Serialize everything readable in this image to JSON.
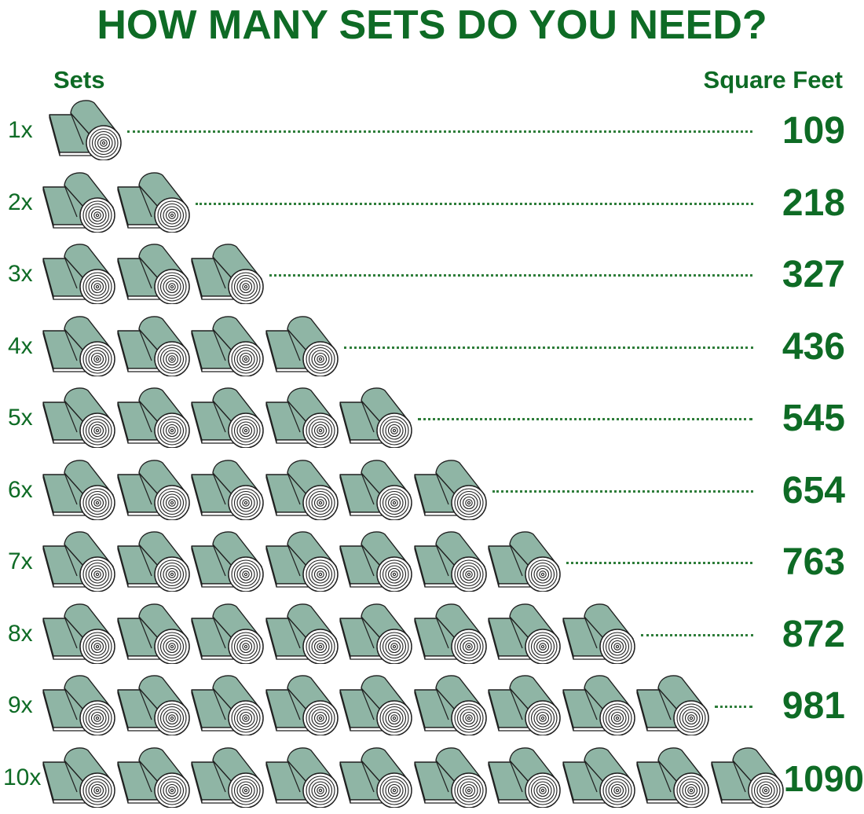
{
  "title": "HOW MANY SETS DO YOU NEED?",
  "headers": {
    "sets": "Sets",
    "square_feet": "Square Feet"
  },
  "icon": "rolled-turf-icon",
  "colors": {
    "text_green": "#0e6b25",
    "dots_green": "#2e7d3a",
    "turf_fill": "#8fb5a5",
    "outline": "#1f1f1f"
  },
  "rows": [
    {
      "label": "1x",
      "sets": 1,
      "square_feet": "109"
    },
    {
      "label": "2x",
      "sets": 2,
      "square_feet": "218"
    },
    {
      "label": "3x",
      "sets": 3,
      "square_feet": "327"
    },
    {
      "label": "4x",
      "sets": 4,
      "square_feet": "436"
    },
    {
      "label": "5x",
      "sets": 5,
      "square_feet": "545"
    },
    {
      "label": "6x",
      "sets": 6,
      "square_feet": "654"
    },
    {
      "label": "7x",
      "sets": 7,
      "square_feet": "763"
    },
    {
      "label": "8x",
      "sets": 8,
      "square_feet": "872"
    },
    {
      "label": "9x",
      "sets": 9,
      "square_feet": "981"
    },
    {
      "label": "10x",
      "sets": 10,
      "square_feet": "1090"
    }
  ]
}
